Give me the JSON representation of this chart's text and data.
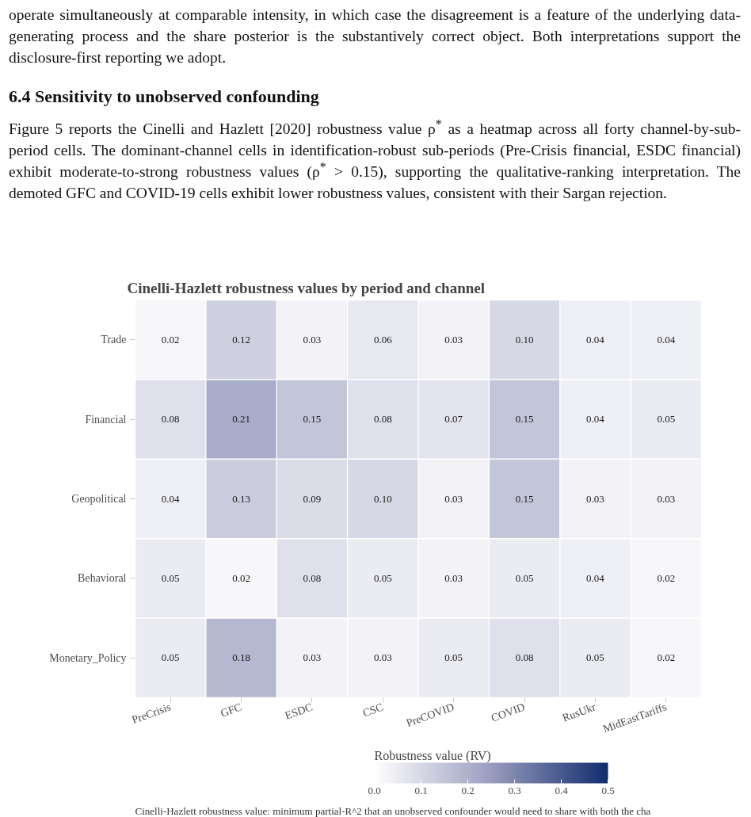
{
  "chart_data": {
    "type": "heatmap",
    "title": "Cinelli-Hazlett robustness values by period and channel",
    "categories": [
      "PreCrisis",
      "GFC",
      "ESDC",
      "CSC",
      "PreCOVID",
      "COVID",
      "RusUkr",
      "MidEastTariffs"
    ],
    "y_categories": [
      "Trade",
      "Financial",
      "Geopolitical",
      "Behavioral",
      "Monetary_Policy"
    ],
    "cells": [
      [
        0.02,
        0.12,
        0.03,
        0.06,
        0.03,
        0.1,
        0.04,
        0.04
      ],
      [
        0.08,
        0.21,
        0.15,
        0.08,
        0.07,
        0.15,
        0.04,
        0.05
      ],
      [
        0.04,
        0.13,
        0.09,
        0.1,
        0.03,
        0.15,
        0.03,
        0.03
      ],
      [
        0.05,
        0.02,
        0.08,
        0.05,
        0.03,
        0.05,
        0.04,
        0.02
      ],
      [
        0.05,
        0.18,
        0.03,
        0.03,
        0.05,
        0.08,
        0.05,
        0.02
      ]
    ],
    "cell_labels": [
      [
        "0.02",
        "0.12",
        "0.03",
        "0.06",
        "0.03",
        "0.10",
        "0.04",
        "0.04"
      ],
      [
        "0.08",
        "0.21",
        "0.15",
        "0.08",
        "0.07",
        "0.15",
        "0.04",
        "0.05"
      ],
      [
        "0.04",
        "0.13",
        "0.09",
        "0.10",
        "0.03",
        "0.15",
        "0.03",
        "0.03"
      ],
      [
        "0.05",
        "0.02",
        "0.08",
        "0.05",
        "0.03",
        "0.05",
        "0.04",
        "0.02"
      ],
      [
        "0.05",
        "0.18",
        "0.03",
        "0.03",
        "0.05",
        "0.08",
        "0.05",
        "0.02"
      ]
    ],
    "colors": [
      "#ffffff",
      "#9a9dbf",
      "#112d6e"
    ],
    "clabel": "Robustness value (RV)",
    "clim": [
      0,
      0.5
    ],
    "cticks": [
      {
        "value": 0,
        "label": "0.0"
      },
      0.1,
      0.2,
      0.3,
      0.4,
      0.5
    ],
    "annotations": [
      "operate simultaneously at comparable intensity, in which case the disagreement is a feature of the underlying data-generating process and the share posterior is the substantively correct object. Both interpretations support the disclosure-first reporting we adopt.",
      "6.4   Sensitivity to unobserved confounding",
      "Figure 5 reports the Cinelli and Hazlett [2020] robustness value ρ$^{*}$ as a heatmap across all forty channel-by-sub-period cells. The dominant-channel cells in identification-robust sub-periods (Pre-Crisis financial, ESDC financial) exhibit moderate-to-strong robustness values (ρ$^{*}$ > 0.15), supporting the qualitative-ranking interpretation. The demoted GFC and COVID-19 cells exhibit lower robustness values, consistent with their Sargan rejection.",
      "Cinelli-Hazlett robustness value: minimum partial-R^2 that an unobserved confounder would need to share with both the cha"
    ]
  }
}
